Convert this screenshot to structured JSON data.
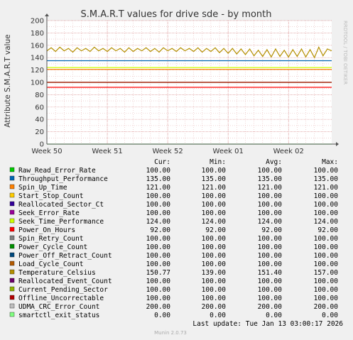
{
  "watermark": "RRDTOOL / TOBI OETIKER",
  "footer": {
    "last_update": "Last update: Tue Jan 13 03:00:17 2026",
    "munin": "Munin 2.0.73"
  },
  "legend_headers": {
    "cur": "Cur:",
    "min": "Min:",
    "avg": "Avg:",
    "max": "Max:"
  },
  "legend": [
    {
      "name": "Raw_Read_Error_Rate",
      "color": "#00cc00",
      "cur": "100.00",
      "min": "100.00",
      "avg": "100.00",
      "max": "100.00"
    },
    {
      "name": "Throughput_Performance",
      "color": "#0066b3",
      "cur": "135.00",
      "min": "135.00",
      "avg": "135.00",
      "max": "135.00"
    },
    {
      "name": "Spin_Up_Time",
      "color": "#ff8000",
      "cur": "121.00",
      "min": "121.00",
      "avg": "121.00",
      "max": "121.00"
    },
    {
      "name": "Start_Stop_Count",
      "color": "#ffcc00",
      "cur": "100.00",
      "min": "100.00",
      "avg": "100.00",
      "max": "100.00"
    },
    {
      "name": "Reallocated_Sector_Ct",
      "color": "#330099",
      "cur": "100.00",
      "min": "100.00",
      "avg": "100.00",
      "max": "100.00"
    },
    {
      "name": "Seek_Error_Rate",
      "color": "#990099",
      "cur": "100.00",
      "min": "100.00",
      "avg": "100.00",
      "max": "100.00"
    },
    {
      "name": "Seek_Time_Performance",
      "color": "#ccff00",
      "cur": "124.00",
      "min": "124.00",
      "avg": "124.00",
      "max": "124.00"
    },
    {
      "name": "Power_On_Hours",
      "color": "#ff0000",
      "cur": "92.00",
      "min": "92.00",
      "avg": "92.00",
      "max": "92.00"
    },
    {
      "name": "Spin_Retry_Count",
      "color": "#808080",
      "cur": "100.00",
      "min": "100.00",
      "avg": "100.00",
      "max": "100.00"
    },
    {
      "name": "Power_Cycle_Count",
      "color": "#008f00",
      "cur": "100.00",
      "min": "100.00",
      "avg": "100.00",
      "max": "100.00"
    },
    {
      "name": "Power_Off_Retract_Count",
      "color": "#00487d",
      "cur": "100.00",
      "min": "100.00",
      "avg": "100.00",
      "max": "100.00"
    },
    {
      "name": "Load_Cycle_Count",
      "color": "#b35a00",
      "cur": "100.00",
      "min": "100.00",
      "avg": "100.00",
      "max": "100.00"
    },
    {
      "name": "Temperature_Celsius",
      "color": "#b38f00",
      "cur": "150.77",
      "min": "139.00",
      "avg": "151.40",
      "max": "157.00"
    },
    {
      "name": "Reallocated_Event_Count",
      "color": "#6b006b",
      "cur": "100.00",
      "min": "100.00",
      "avg": "100.00",
      "max": "100.00"
    },
    {
      "name": "Current_Pending_Sector",
      "color": "#8fb300",
      "cur": "100.00",
      "min": "100.00",
      "avg": "100.00",
      "max": "100.00"
    },
    {
      "name": "Offline_Uncorrectable",
      "color": "#b30000",
      "cur": "100.00",
      "min": "100.00",
      "avg": "100.00",
      "max": "100.00"
    },
    {
      "name": "UDMA_CRC_Error_Count",
      "color": "#bebebe",
      "cur": "200.00",
      "min": "200.00",
      "avg": "200.00",
      "max": "200.00"
    },
    {
      "name": "smartctl_exit_status",
      "color": "#80ff80",
      "cur": "0.00",
      "min": "0.00",
      "avg": "0.00",
      "max": "0.00"
    }
  ],
  "chart_data": {
    "type": "line",
    "title": "S.M.A.R.T values for drive sde - by month",
    "ylabel": "Attribute S.M.A.R.T value",
    "xlabel": "",
    "ylim": [
      0,
      200
    ],
    "yticks": [
      0,
      20,
      40,
      60,
      80,
      100,
      120,
      140,
      160,
      180,
      200
    ],
    "ytick_labels": [
      "0",
      "20",
      "40",
      "60",
      "80",
      "100",
      "120",
      "140",
      "160",
      "180",
      "200"
    ],
    "xlim": [
      0,
      33
    ],
    "xticks": [
      0,
      7,
      14,
      21,
      28
    ],
    "xtick_labels": [
      "Week 50",
      "Week 51",
      "Week 52",
      "Week 01",
      "Week 02"
    ],
    "grid": true,
    "series": [
      {
        "name": "Throughput_Performance",
        "color": "#0066b3",
        "x": [
          0,
          33
        ],
        "values": [
          135,
          135
        ]
      },
      {
        "name": "Seek_Time_Performance",
        "color": "#ccff00",
        "x": [
          0,
          33
        ],
        "values": [
          124,
          124
        ]
      },
      {
        "name": "Spin_Up_Time",
        "color": "#ff8000",
        "x": [
          0,
          33
        ],
        "values": [
          121,
          121
        ]
      },
      {
        "name": "Raw_Read_Error_Rate",
        "color": "#00cc00",
        "x": [
          0,
          33
        ],
        "values": [
          100,
          100
        ]
      },
      {
        "name": "Offline_Uncorrectable",
        "color": "#b30000",
        "x": [
          0,
          33
        ],
        "values": [
          100,
          100
        ]
      },
      {
        "name": "Power_On_Hours",
        "color": "#ff0000",
        "x": [
          0,
          33
        ],
        "values": [
          92,
          92
        ]
      },
      {
        "name": "smartctl_exit_status",
        "color": "#80ff80",
        "x": [
          0,
          33
        ],
        "values": [
          0,
          0
        ]
      },
      {
        "name": "Temperature_Celsius",
        "color": "#b38f00",
        "x": [
          0,
          0.5,
          1,
          1.5,
          2,
          2.5,
          3,
          3.5,
          4,
          4.5,
          5,
          5.5,
          6,
          6.5,
          7,
          7.5,
          8,
          8.5,
          9,
          9.5,
          10,
          10.5,
          11,
          11.5,
          12,
          12.5,
          13,
          13.5,
          14,
          14.5,
          15,
          15.5,
          16,
          16.5,
          17,
          17.5,
          18,
          18.5,
          19,
          19.5,
          20,
          20.5,
          21,
          21.5,
          22,
          22.5,
          23,
          23.5,
          24,
          24.5,
          25,
          25.5,
          26,
          26.5,
          27,
          27.5,
          28,
          28.5,
          29,
          29.5,
          30,
          30.5,
          31,
          31.5,
          32,
          32.5,
          33
        ],
        "values": [
          151,
          156,
          150,
          157,
          151,
          155,
          149,
          156,
          151,
          155,
          150,
          157,
          151,
          155,
          150,
          156,
          151,
          155,
          149,
          156,
          150,
          155,
          151,
          156,
          150,
          155,
          149,
          156,
          151,
          155,
          150,
          156,
          151,
          155,
          150,
          156,
          149,
          155,
          150,
          156,
          148,
          155,
          147,
          155,
          146,
          154,
          145,
          154,
          143,
          152,
          142,
          153,
          141,
          154,
          142,
          152,
          141,
          153,
          142,
          154,
          141,
          153,
          140,
          157,
          143,
          154,
          151
        ]
      }
    ]
  }
}
